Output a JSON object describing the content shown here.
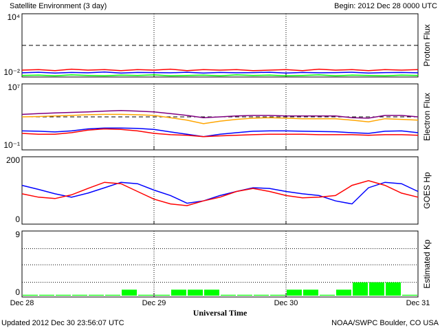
{
  "header": {
    "title": "Satellite Environment (3 day)",
    "begin": "Begin:  2012 Dec 28 0000 UTC"
  },
  "footer": {
    "updated": "Updated 2012 Dec 30 23:56:07 UTC",
    "source": "NOAA/SWPC Boulder, CO USA"
  },
  "chart_data": [
    {
      "type": "line",
      "ylabel": "Proton Flux",
      "log": true,
      "ylim": [
        0.01,
        10000
      ],
      "yticks": [
        {
          "value": 0.01,
          "label": "10⁻²"
        },
        {
          "value": 10000,
          "label": "10⁴"
        }
      ],
      "hlines": [
        10
      ],
      "hline_style": "dashed",
      "x": [
        0,
        0.125,
        0.25,
        0.375,
        0.5,
        0.625,
        0.75,
        0.875,
        1,
        1.125,
        1.25,
        1.375,
        1.5,
        1.625,
        1.75,
        1.875,
        2,
        2.125,
        2.25,
        2.375,
        2.5,
        2.625,
        2.75,
        2.875,
        3
      ],
      "series": [
        {
          "color": "#ff0000",
          "values": [
            0.045,
            0.05,
            0.04,
            0.055,
            0.045,
            0.05,
            0.04,
            0.05,
            0.045,
            0.055,
            0.04,
            0.05,
            0.045,
            0.05,
            0.04,
            0.045,
            0.05,
            0.04,
            0.055,
            0.045,
            0.05,
            0.04,
            0.05,
            0.045,
            0.05
          ]
        },
        {
          "color": "#0000ff",
          "values": [
            0.025,
            0.028,
            0.024,
            0.027,
            0.025,
            0.03,
            0.024,
            0.027,
            0.026,
            0.025,
            0.028,
            0.024,
            0.027,
            0.025,
            0.026,
            0.028,
            0.024,
            0.027,
            0.025,
            0.026,
            0.028,
            0.024,
            0.026,
            0.027,
            0.025
          ]
        },
        {
          "color": "#00ff00",
          "values": [
            0.014,
            0.015,
            0.013,
            0.016,
            0.014,
            0.013,
            0.015,
            0.014,
            0.016,
            0.013,
            0.014,
            0.015,
            0.013,
            0.016,
            0.014,
            0.015,
            0.013,
            0.014,
            0.016,
            0.013,
            0.015,
            0.014,
            0.013,
            0.015,
            0.014
          ]
        }
      ]
    },
    {
      "type": "line",
      "ylabel": "Electron Flux",
      "log": true,
      "ylim": [
        0.1,
        10000000
      ],
      "yticks": [
        {
          "value": 0.1,
          "label": "10⁻¹"
        },
        {
          "value": 10000000,
          "label": "10⁷"
        }
      ],
      "hlines": [
        1000
      ],
      "hline_style": "dashed",
      "x": [
        0,
        0.125,
        0.25,
        0.375,
        0.5,
        0.625,
        0.75,
        0.875,
        1,
        1.125,
        1.25,
        1.375,
        1.5,
        1.625,
        1.75,
        1.875,
        2,
        2.125,
        2.25,
        2.375,
        2.5,
        2.625,
        2.75,
        2.875,
        3
      ],
      "series": [
        {
          "color": "#800080",
          "values": [
            2000,
            2500,
            3000,
            3500,
            4000,
            5000,
            6000,
            5000,
            4000,
            2500,
            1500,
            800,
            1000,
            1300,
            1500,
            1500,
            1300,
            1300,
            1300,
            1300,
            800,
            700,
            1500,
            1500,
            1000
          ]
        },
        {
          "color": "#ffa500",
          "values": [
            1000,
            1100,
            1300,
            1500,
            1800,
            2000,
            2000,
            1800,
            1500,
            800,
            400,
            150,
            300,
            500,
            700,
            800,
            700,
            600,
            600,
            600,
            400,
            250,
            600,
            500,
            400
          ]
        },
        {
          "color": "#0000ff",
          "values": [
            20,
            18,
            15,
            20,
            35,
            45,
            45,
            40,
            30,
            15,
            8,
            4,
            8,
            12,
            18,
            20,
            20,
            18,
            17,
            16,
            12,
            10,
            18,
            20,
            12
          ]
        },
        {
          "color": "#ff0000",
          "values": [
            10,
            8,
            8,
            12,
            25,
            35,
            30,
            20,
            10,
            7,
            6,
            4,
            5,
            6,
            7,
            8,
            8,
            8,
            7,
            7,
            7,
            6,
            7,
            7,
            6
          ]
        }
      ]
    },
    {
      "type": "line",
      "ylabel": "GOES Hp",
      "log": false,
      "ylim": [
        0,
        200
      ],
      "yticks": [
        0,
        200
      ],
      "x": [
        0,
        0.125,
        0.25,
        0.375,
        0.5,
        0.625,
        0.75,
        0.875,
        1,
        1.125,
        1.25,
        1.375,
        1.5,
        1.625,
        1.75,
        1.875,
        2,
        2.125,
        2.25,
        2.375,
        2.5,
        2.625,
        2.75,
        2.875,
        3
      ],
      "series": [
        {
          "color": "#0000ff",
          "values": [
            115,
            103,
            90,
            80,
            92,
            108,
            124,
            120,
            101,
            85,
            62,
            69,
            85,
            97,
            108,
            106,
            97,
            90,
            85,
            69,
            60,
            108,
            124,
            120,
            97
          ]
        },
        {
          "color": "#ff0000",
          "values": [
            90,
            80,
            76,
            87,
            106,
            124,
            120,
            97,
            74,
            60,
            55,
            69,
            80,
            97,
            106,
            97,
            85,
            78,
            80,
            85,
            115,
            129,
            115,
            92,
            80
          ]
        }
      ]
    },
    {
      "type": "bar",
      "ylabel": "Estimated Kp",
      "xlabel": "Universal Time",
      "log": false,
      "ylim": [
        0,
        9
      ],
      "yticks": [
        0,
        9
      ],
      "hlines": [
        2,
        4.4,
        6.6,
        9
      ],
      "hline_style": "dotted",
      "xlim": [
        0,
        3
      ],
      "xticks": [
        {
          "value": 0,
          "label": "Dec 28"
        },
        {
          "value": 1,
          "label": "Dec 29"
        },
        {
          "value": 2,
          "label": "Dec 30"
        },
        {
          "value": 3,
          "label": "Dec 31"
        }
      ],
      "color": "#00ff00",
      "x": [
        0,
        0.125,
        0.25,
        0.375,
        0.5,
        0.625,
        0.75,
        0.875,
        1,
        1.125,
        1.25,
        1.375,
        1.5,
        1.625,
        1.75,
        1.875,
        2,
        2.125,
        2.25,
        2.375,
        2.5,
        2.625,
        2.75,
        2.875
      ],
      "values": [
        0.3,
        0.3,
        0.3,
        0.3,
        0.3,
        0.3,
        1,
        0.3,
        0.3,
        1,
        1,
        1,
        0.3,
        0.3,
        0.3,
        0.3,
        1,
        1,
        0.3,
        1,
        2,
        2,
        2,
        0.3
      ]
    }
  ]
}
